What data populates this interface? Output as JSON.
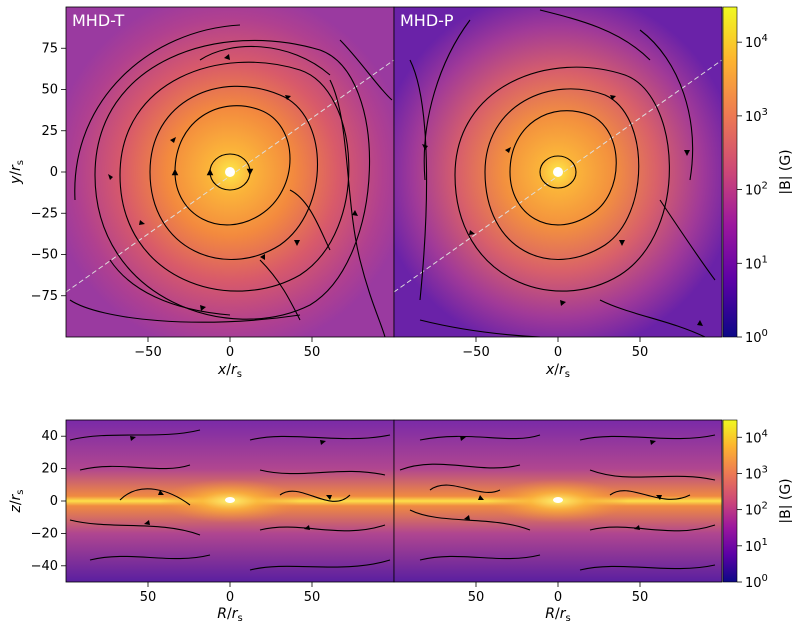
{
  "colors": {
    "bg_low": "#5a1fa0",
    "bg_mid": "#b83d8c",
    "bg_high": "#f59a3a",
    "core": "#fde84a",
    "stream": "#000000",
    "colormap": [
      "#0d0887",
      "#5c01a6",
      "#9c179e",
      "#cc4778",
      "#ed7953",
      "#fdb42f",
      "#f0f921"
    ]
  },
  "chart_data": [
    {
      "type": "heatmap",
      "panel": "MHD-T",
      "xlabel": "x/r_s",
      "ylabel": "y/r_s",
      "xlim": [
        -100,
        100
      ],
      "ylim": [
        -100,
        100
      ],
      "xticks": [
        -50,
        0,
        50
      ],
      "xtick_labels": [
        "−50",
        "0",
        "50"
      ],
      "yticks": [
        75,
        50,
        25,
        0,
        -25,
        -50,
        -75
      ],
      "ytick_labels": [
        "75",
        "50",
        "25",
        "0",
        "−25",
        "−50",
        "−75"
      ],
      "has_dashed_line": true
    },
    {
      "type": "heatmap",
      "panel": "MHD-P",
      "xlabel": "x/r_s",
      "xlim": [
        -100,
        100
      ],
      "ylim": [
        -100,
        100
      ],
      "xticks": [
        -50,
        0,
        50
      ],
      "xtick_labels": [
        "−50",
        "0",
        "50"
      ],
      "has_dashed_line": true
    },
    {
      "type": "heatmap",
      "panel": "MHD-T-side",
      "xlabel": "R/r_s",
      "ylabel": "z/r_s",
      "xlim": [
        100,
        0
      ],
      "ylim": [
        -50,
        50
      ],
      "xticks": [
        50,
        0,
        50
      ],
      "xtick_labels": [
        "50",
        "0",
        "50"
      ],
      "yticks": [
        40,
        20,
        0,
        -20,
        -40
      ],
      "ytick_labels": [
        "40",
        "20",
        "0",
        "−20",
        "−40"
      ]
    },
    {
      "type": "heatmap",
      "panel": "MHD-P-side",
      "xlabel": "R/r_s",
      "xlim": [
        100,
        0
      ],
      "ylim": [
        -50,
        50
      ],
      "xticks": [
        50,
        0,
        50
      ],
      "xtick_labels": [
        "50",
        "0",
        "50"
      ]
    }
  ],
  "colorbar": {
    "label": "|B| (G)",
    "scale": "log",
    "range": [
      1,
      30000
    ],
    "ticks": [
      {
        "base": "10",
        "exp": "4",
        "value": 10000
      },
      {
        "base": "10",
        "exp": "3",
        "value": 1000
      },
      {
        "base": "10",
        "exp": "2",
        "value": 100
      },
      {
        "base": "10",
        "exp": "1",
        "value": 10
      },
      {
        "base": "10",
        "exp": "0",
        "value": 1
      }
    ]
  },
  "labels": {
    "panel_t": "MHD-T",
    "panel_p": "MHD-P",
    "x_var": "x",
    "y_var": "y",
    "r_var": "R",
    "z_var": "z",
    "unit": "r",
    "unit_sub": "s"
  }
}
